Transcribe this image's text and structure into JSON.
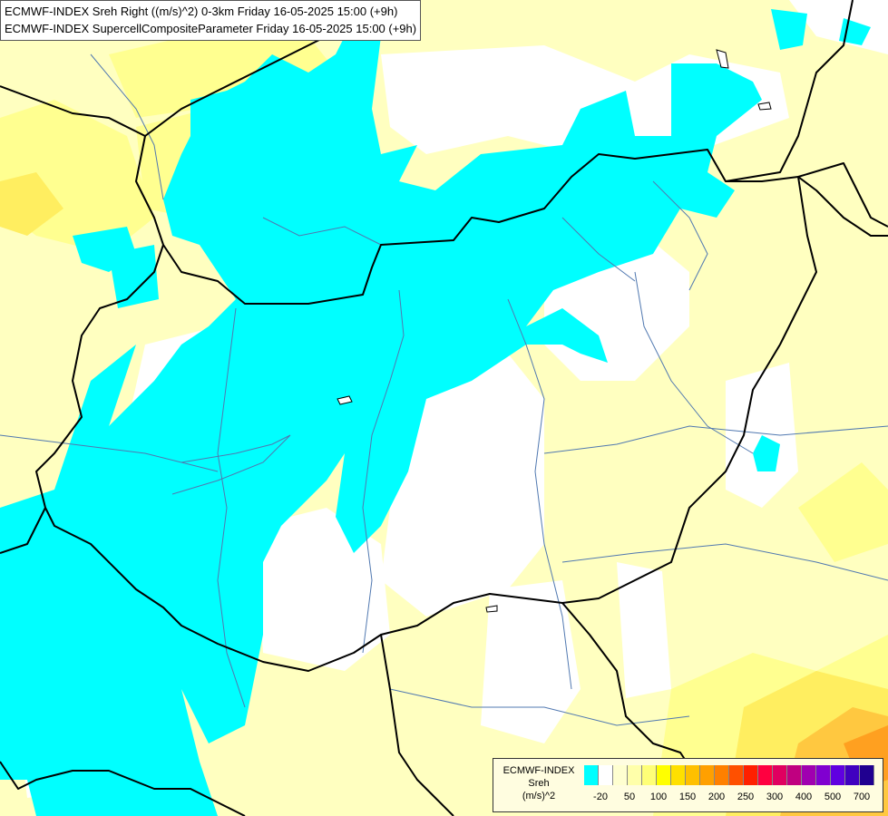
{
  "title": {
    "line1": "ECMWF-INDEX Sreh Right ((m/s)^2) 0-3km Friday 16-05-2025 15:00 (+9h)",
    "line2": "ECMWF-INDEX SupercellCompositeParameter Friday 16-05-2025 15:00 (+9h)"
  },
  "legend": {
    "line1": "ECMWF-INDEX",
    "line2": "Sreh",
    "line3": "(m/s)^2",
    "colors": [
      "#00ffff",
      "#ffffff",
      "#ffffd0",
      "#ffffaa",
      "#ffff77",
      "#ffff00",
      "#ffe000",
      "#ffc000",
      "#ffa000",
      "#ff8000",
      "#ff5000",
      "#ff2000",
      "#ff0040",
      "#e00060",
      "#c00080",
      "#a000b0",
      "#8000d0",
      "#6000e0",
      "#4000c0",
      "#200090"
    ],
    "ticks": [
      "-20",
      "50",
      "100",
      "150",
      "200",
      "250",
      "300",
      "400",
      "500",
      "700"
    ]
  },
  "colors": {
    "cyan": "#00ffff",
    "pale_yellow": "#ffffc0",
    "yellow": "#ffff80",
    "orange": "#ffd000",
    "border": "#000000",
    "river": "#5070a0"
  }
}
